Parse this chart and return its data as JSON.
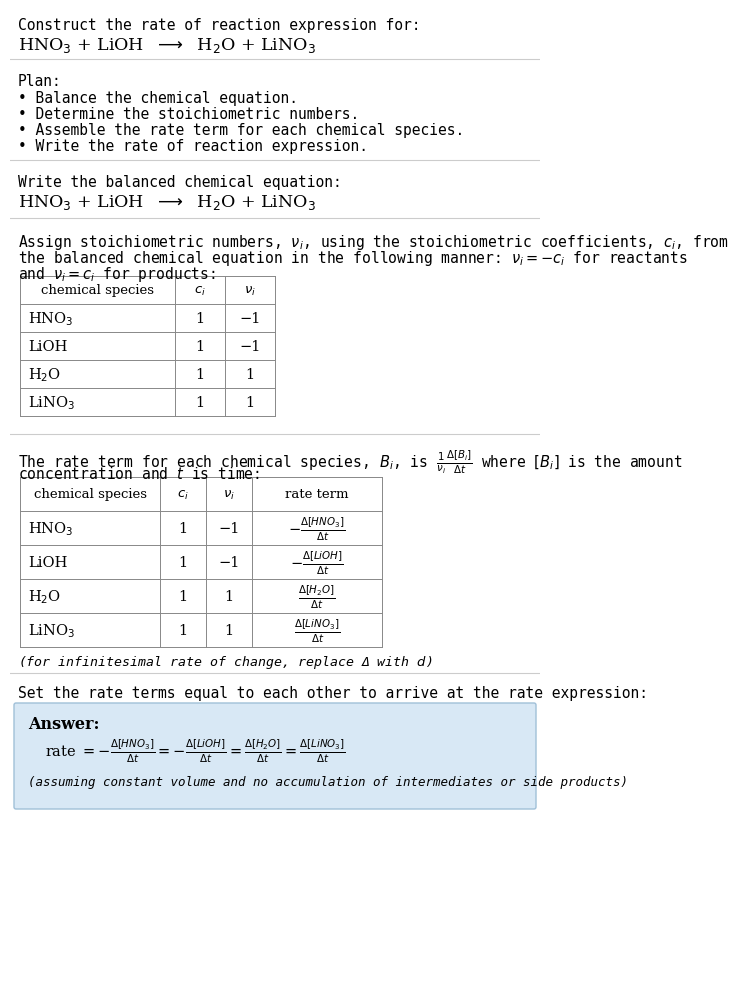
{
  "title_line1": "Construct the rate of reaction expression for:",
  "title_line2_parts": [
    "HNO",
    "3",
    " + LiOH  ⟶  H",
    "2",
    "O + LiNO",
    "3"
  ],
  "plan_header": "Plan:",
  "plan_items": [
    "• Balance the chemical equation.",
    "• Determine the stoichiometric numbers.",
    "• Assemble the rate term for each chemical species.",
    "• Write the rate of reaction expression."
  ],
  "balanced_eq_header": "Write the balanced chemical equation:",
  "stoich_intro_line1": "Assign stoichiometric numbers, $\\nu_i$, using the stoichiometric coefficients, $c_i$, from",
  "stoich_intro_line2": "the balanced chemical equation in the following manner: $\\nu_i = -c_i$ for reactants",
  "stoich_intro_line3": "and $\\nu_i = c_i$ for products:",
  "table1_headers": [
    "chemical species",
    "$c_i$",
    "$\\nu_i$"
  ],
  "table1_rows": [
    [
      "HNO$_3$",
      "1",
      "−1"
    ],
    [
      "LiOH",
      "1",
      "−1"
    ],
    [
      "H$_2$O",
      "1",
      "1"
    ],
    [
      "LiNO$_3$",
      "1",
      "1"
    ]
  ],
  "rate_term_intro_line1": "The rate term for each chemical species, $B_i$, is $\\frac{1}{\\nu_i}\\frac{\\Delta[B_i]}{\\Delta t}$ where $[B_i]$ is the amount",
  "rate_term_intro_line2": "concentration and $t$ is time:",
  "table2_headers": [
    "chemical species",
    "$c_i$",
    "$\\nu_i$",
    "rate term"
  ],
  "table2_rows": [
    [
      "HNO$_3$",
      "1",
      "−1",
      "$-\\frac{\\Delta[HNO_3]}{\\Delta t}$"
    ],
    [
      "LiOH",
      "1",
      "−1",
      "$-\\frac{\\Delta[LiOH]}{\\Delta t}$"
    ],
    [
      "H$_2$O",
      "1",
      "1",
      "$\\frac{\\Delta[H_2O]}{\\Delta t}$"
    ],
    [
      "LiNO$_3$",
      "1",
      "1",
      "$\\frac{\\Delta[LiNO_3]}{\\Delta t}$"
    ]
  ],
  "infinitesimal_note": "(for infinitesimal rate of change, replace Δ with $d$)",
  "set_rate_intro": "Set the rate terms equal to each other to arrive at the rate expression:",
  "answer_box_color": "#d8e8f5",
  "answer_label": "Answer:",
  "rate_expression": "rate $= -\\frac{\\Delta[HNO_3]}{\\Delta t} = -\\frac{\\Delta[LiOH]}{\\Delta t} = \\frac{\\Delta[H_2O]}{\\Delta t} = \\frac{\\Delta[LiNO_3]}{\\Delta t}$",
  "assuming_note": "(assuming constant volume and no accumulation of intermediates or side products)",
  "bg_color": "#ffffff",
  "text_color": "#000000",
  "sep_color": "#cccccc"
}
